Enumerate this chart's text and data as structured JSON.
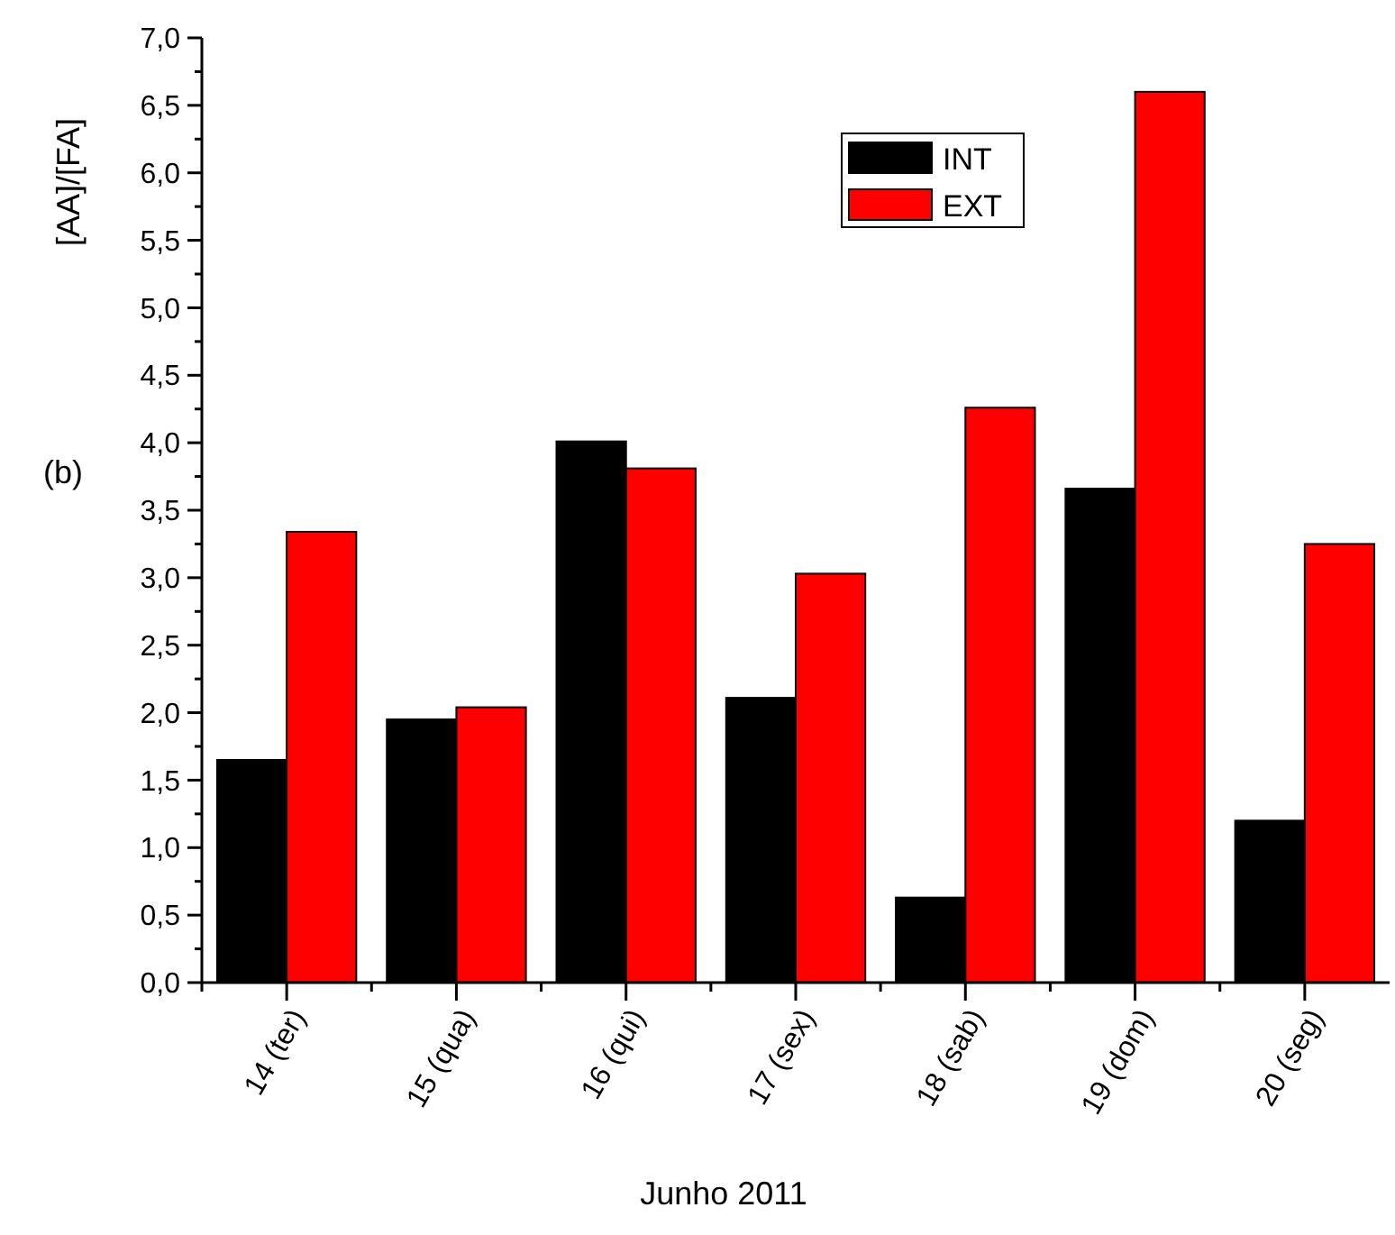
{
  "chart_data": {
    "type": "bar",
    "xlabel": "Junho 2011",
    "ylabel": "[AA]/[FA]",
    "annotations": [
      "(b)"
    ],
    "categories": [
      "14 (ter)",
      "15 (qua)",
      "16 (qui)",
      "17 (sex)",
      "18 (sab)",
      "19 (dom)",
      "20 (seg)"
    ],
    "series": [
      {
        "name": "INT",
        "color": "#000000",
        "values": [
          1.65,
          1.95,
          4.01,
          2.11,
          0.63,
          3.66,
          1.2
        ]
      },
      {
        "name": "EXT",
        "color": "#ff0000",
        "values": [
          3.34,
          2.04,
          3.81,
          3.03,
          4.26,
          6.6,
          3.25
        ]
      }
    ],
    "ylim": [
      0,
      7
    ],
    "yticks": [
      {
        "value": 0,
        "label": "0,0"
      },
      {
        "value": 0.5,
        "label": "0,5"
      },
      {
        "value": 1,
        "label": "1,0"
      },
      {
        "value": 1.5,
        "label": "1,5"
      },
      {
        "value": 2,
        "label": "2,0"
      },
      {
        "value": 2.5,
        "label": "2,5"
      },
      {
        "value": 3,
        "label": "3,0"
      },
      {
        "value": 3.5,
        "label": "3,5"
      },
      {
        "value": 4,
        "label": "4,0"
      },
      {
        "value": 4.5,
        "label": "4,5"
      },
      {
        "value": 5,
        "label": "5,0"
      },
      {
        "value": 5.5,
        "label": "5,5"
      },
      {
        "value": 6,
        "label": "6,0"
      },
      {
        "value": 6.5,
        "label": "6,5"
      },
      {
        "value": 7,
        "label": "7,0"
      }
    ],
    "legend": "top",
    "grid": false
  }
}
